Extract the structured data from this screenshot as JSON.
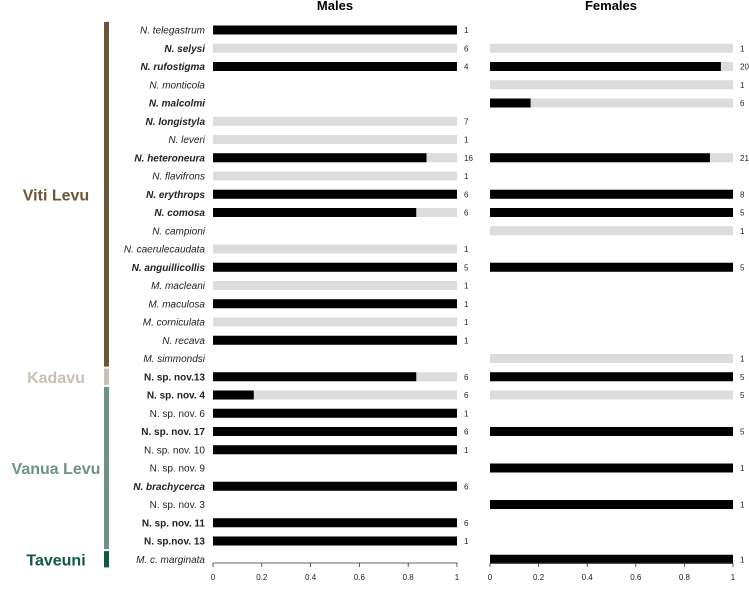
{
  "chart_data": {
    "type": "bar",
    "panels": [
      {
        "title": "Males",
        "xlim": [
          0,
          1
        ],
        "xticks": [
          "0",
          "0.2",
          "0.4",
          "0.6",
          "0.8",
          "1"
        ]
      },
      {
        "title": "Females",
        "xlim": [
          0,
          1
        ],
        "xticks": [
          "0",
          "0.2",
          "0.4",
          "0.6",
          "0.8",
          "1"
        ]
      }
    ],
    "regions": [
      {
        "name": "Viti Levu",
        "color": "#6b5636",
        "first_row": 0,
        "last_row": 18
      },
      {
        "name": "Kadavu",
        "color": "#c8bfb6",
        "first_row": 19,
        "last_row": 19
      },
      {
        "name": "Vanua Levu",
        "color": "#6d9382",
        "first_row": 20,
        "last_row": 28
      },
      {
        "name": "Taveuni",
        "color": "#0f5a3a",
        "first_row": 29,
        "last_row": 29
      }
    ],
    "colors": {
      "filled": "#000000",
      "background": "#dcdcdc"
    },
    "rows": [
      {
        "label": "N. telegastrum",
        "bold": false,
        "males": {
          "value": 1.0,
          "n": "1"
        },
        "females": null
      },
      {
        "label": "N. selysi",
        "bold": true,
        "males": {
          "value": 0.0,
          "n": "6"
        },
        "females": {
          "value": 0.0,
          "n": "1"
        }
      },
      {
        "label": "N. rufostigma",
        "bold": true,
        "males": {
          "value": 1.0,
          "n": "4"
        },
        "females": {
          "value": 0.95,
          "n": "20"
        }
      },
      {
        "label": "N. monticola",
        "bold": false,
        "males": null,
        "females": {
          "value": 0.0,
          "n": "1"
        }
      },
      {
        "label": "N. malcolmi",
        "bold": true,
        "males": null,
        "females": {
          "value": 0.167,
          "n": "6"
        }
      },
      {
        "label": "N. longistyla",
        "bold": true,
        "males": {
          "value": 0.0,
          "n": "7"
        },
        "females": null
      },
      {
        "label": "N. leveri",
        "bold": false,
        "males": {
          "value": 0.0,
          "n": "1"
        },
        "females": null
      },
      {
        "label": "N. heteroneura",
        "bold": true,
        "males": {
          "value": 0.875,
          "n": "16"
        },
        "females": {
          "value": 0.905,
          "n": "21"
        }
      },
      {
        "label": "N. flavifrons",
        "bold": false,
        "males": {
          "value": 0.0,
          "n": "1"
        },
        "females": null
      },
      {
        "label": "N. erythrops",
        "bold": true,
        "males": {
          "value": 1.0,
          "n": "6"
        },
        "females": {
          "value": 1.0,
          "n": "8"
        }
      },
      {
        "label": "N. comosa",
        "bold": true,
        "males": {
          "value": 0.833,
          "n": "6"
        },
        "females": {
          "value": 1.0,
          "n": "5"
        }
      },
      {
        "label": "N. campioni",
        "bold": false,
        "males": null,
        "females": {
          "value": 0.0,
          "n": "1"
        }
      },
      {
        "label": "N. caerulecaudata",
        "bold": false,
        "males": {
          "value": 0.0,
          "n": "1"
        },
        "females": null
      },
      {
        "label": "N. anguillicollis",
        "bold": true,
        "males": {
          "value": 1.0,
          "n": "5"
        },
        "females": {
          "value": 1.0,
          "n": "5"
        }
      },
      {
        "label": "M. macleani",
        "bold": false,
        "males": {
          "value": 0.0,
          "n": "1"
        },
        "females": null
      },
      {
        "label": "M. maculosa",
        "bold": false,
        "males": {
          "value": 1.0,
          "n": "1"
        },
        "females": null
      },
      {
        "label": "M. corniculata",
        "bold": false,
        "males": {
          "value": 0.0,
          "n": "1"
        },
        "females": null
      },
      {
        "label": "N. recava",
        "bold": false,
        "males": {
          "value": 1.0,
          "n": "1"
        },
        "females": null
      },
      {
        "label": "M. simmondsi",
        "bold": false,
        "males": null,
        "females": {
          "value": 0.0,
          "n": "1"
        }
      },
      {
        "label": "N. sp. nov.13",
        "bold": true,
        "roman": true,
        "males": {
          "value": 0.833,
          "n": "6"
        },
        "females": {
          "value": 1.0,
          "n": "5"
        }
      },
      {
        "label": "N. sp. nov. 4",
        "bold": true,
        "roman": true,
        "males": {
          "value": 0.167,
          "n": "6"
        },
        "females": {
          "value": 0.0,
          "n": "5"
        }
      },
      {
        "label": "N. sp. nov. 6",
        "bold": false,
        "roman": true,
        "males": {
          "value": 1.0,
          "n": "1"
        },
        "females": null
      },
      {
        "label": "N. sp. nov. 17",
        "bold": true,
        "roman": true,
        "males": {
          "value": 1.0,
          "n": "6"
        },
        "females": {
          "value": 1.0,
          "n": "5"
        }
      },
      {
        "label": "N. sp. nov. 10",
        "bold": false,
        "roman": true,
        "males": {
          "value": 1.0,
          "n": "1"
        },
        "females": null
      },
      {
        "label": "N. sp. nov. 9",
        "bold": false,
        "roman": true,
        "males": null,
        "females": {
          "value": 1.0,
          "n": "1"
        }
      },
      {
        "label": "N. brachycerca",
        "bold": true,
        "males": {
          "value": 1.0,
          "n": "6"
        },
        "females": null
      },
      {
        "label": "N. sp. nov. 3",
        "bold": false,
        "roman": true,
        "males": null,
        "females": {
          "value": 1.0,
          "n": "1"
        }
      },
      {
        "label": "N. sp. nov. 11",
        "bold": true,
        "roman": true,
        "males": {
          "value": 1.0,
          "n": "6"
        },
        "females": null
      },
      {
        "label": "N. sp.nov. 13",
        "bold": true,
        "roman": true,
        "males": {
          "value": 1.0,
          "n": "1"
        },
        "females": null
      },
      {
        "label": "M. c. marginata",
        "bold": false,
        "males": null,
        "females": {
          "value": 1.0,
          "n": "1"
        }
      }
    ]
  }
}
